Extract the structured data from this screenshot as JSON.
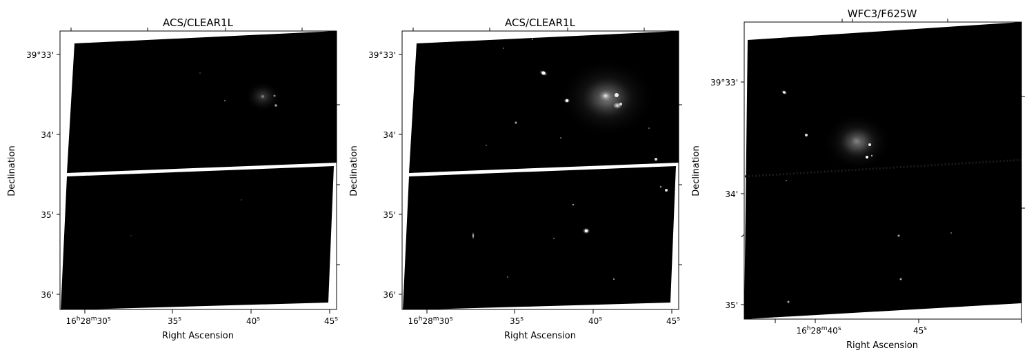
{
  "panels": [
    {
      "title": "ACS/CLEAR1L",
      "xlabel": "Right Ascension",
      "ylabel": "Declination",
      "yticks": [
        "39°33'",
        "34'",
        "35'",
        "36'"
      ],
      "xticks": [
        {
          "main": "16",
          "h": "h",
          "m_val": "28",
          "m": "m",
          "s_val": "30",
          "s": "s"
        },
        {
          "main": "35",
          "s": "s"
        },
        {
          "main": "40",
          "s": "s"
        },
        {
          "main": "45",
          "s": "s"
        }
      ]
    },
    {
      "title": "ACS/CLEAR1L",
      "xlabel": "Right Ascension",
      "ylabel": "Declination",
      "yticks": [
        "39°33'",
        "34'",
        "35'",
        "36'"
      ],
      "xticks": [
        {
          "main": "16",
          "h": "h",
          "m_val": "28",
          "m": "m",
          "s_val": "30",
          "s": "s"
        },
        {
          "main": "35",
          "s": "s"
        },
        {
          "main": "40",
          "s": "s"
        },
        {
          "main": "45",
          "s": "s"
        }
      ]
    },
    {
      "title": "WFC3/F625W",
      "xlabel": "Right Ascension",
      "ylabel": "Declination",
      "yticks": [
        "39°33'",
        "34'",
        "35'"
      ],
      "xticks": [
        {
          "main": "16",
          "h": "h",
          "m_val": "28",
          "m": "m",
          "s_val": "40",
          "s": "s"
        },
        {
          "main": "45",
          "s": "s"
        }
      ]
    }
  ],
  "colors": {
    "image_black": "#000000",
    "chip_gap": "#ffffff",
    "frame": "#000000"
  }
}
